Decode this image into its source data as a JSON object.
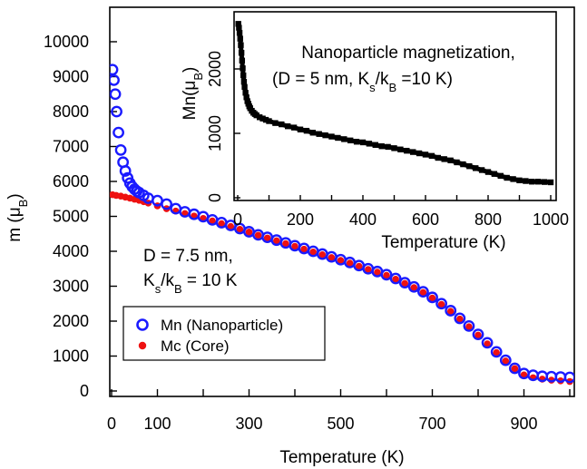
{
  "chart_data": [
    {
      "type": "scatter",
      "xlabel": "Temperature (K)",
      "ylabel": "m (μB)",
      "xlim": [
        0,
        1000
      ],
      "ylim": [
        0,
        10400
      ],
      "xticks": [
        0,
        100,
        300,
        500,
        700,
        900
      ],
      "yticks": [
        0,
        1000,
        2000,
        3000,
        4000,
        5000,
        6000,
        7000,
        8000,
        9000,
        10000
      ],
      "annotation": [
        "D = 7.5 nm,",
        "Ks/kB = 10 K"
      ],
      "legend_position": "bottom-left",
      "series": [
        {
          "name": "Mn (Nanoparticle)",
          "color": "#1a1aff",
          "marker": "open-circle",
          "x": [
            2,
            5,
            8,
            11,
            15,
            20,
            25,
            30,
            35,
            40,
            45,
            50,
            55,
            60,
            70,
            80,
            100,
            120,
            140,
            160,
            180,
            200,
            220,
            240,
            260,
            280,
            300,
            320,
            340,
            360,
            380,
            400,
            420,
            440,
            460,
            480,
            500,
            520,
            540,
            560,
            580,
            600,
            620,
            640,
            660,
            680,
            700,
            720,
            740,
            760,
            780,
            800,
            820,
            840,
            860,
            880,
            900,
            920,
            940,
            960,
            980,
            1000
          ],
          "y": [
            9200,
            8900,
            8500,
            8000,
            7400,
            6900,
            6550,
            6300,
            6100,
            5950,
            5850,
            5780,
            5720,
            5680,
            5600,
            5520,
            5450,
            5350,
            5220,
            5130,
            5060,
            4990,
            4900,
            4820,
            4740,
            4650,
            4560,
            4470,
            4400,
            4320,
            4240,
            4160,
            4080,
            4000,
            3920,
            3840,
            3760,
            3680,
            3590,
            3500,
            3420,
            3330,
            3220,
            3100,
            2980,
            2840,
            2680,
            2500,
            2300,
            2080,
            1860,
            1620,
            1380,
            1120,
            880,
            650,
            500,
            450,
            420,
            410,
            400,
            390
          ]
        },
        {
          "name": "Mc (Core)",
          "color": "#ee1111",
          "marker": "filled-circle",
          "x": [
            2,
            10,
            20,
            30,
            40,
            50,
            60,
            70,
            80,
            100,
            120,
            140,
            160,
            180,
            200,
            220,
            240,
            260,
            280,
            300,
            320,
            340,
            360,
            380,
            400,
            420,
            440,
            460,
            480,
            500,
            520,
            540,
            560,
            580,
            600,
            620,
            640,
            660,
            680,
            700,
            720,
            740,
            760,
            780,
            800,
            820,
            840,
            860,
            880,
            900,
            920,
            940,
            960,
            980,
            1000
          ],
          "y": [
            5620,
            5600,
            5580,
            5550,
            5520,
            5490,
            5460,
            5420,
            5380,
            5300,
            5220,
            5150,
            5080,
            5010,
            4940,
            4870,
            4790,
            4710,
            4630,
            4550,
            4460,
            4380,
            4300,
            4220,
            4140,
            4060,
            3980,
            3900,
            3820,
            3740,
            3660,
            3570,
            3480,
            3400,
            3310,
            3200,
            3080,
            2960,
            2820,
            2660,
            2480,
            2280,
            2060,
            1840,
            1600,
            1350,
            1100,
            860,
            640,
            460,
            380,
            340,
            310,
            290,
            270
          ]
        }
      ]
    },
    {
      "type": "scatter",
      "title_lines": [
        "Nanoparticle magnetization,",
        "(D = 5 nm,  Ks/kB =10 K)"
      ],
      "xlabel": "Temperature (K)",
      "ylabel": "Mn(μB)",
      "xlim": [
        0,
        1000
      ],
      "ylim": [
        0,
        2750
      ],
      "xticks": [
        0,
        200,
        400,
        600,
        800,
        1000
      ],
      "yticks": [
        0,
        1000,
        2000
      ],
      "series": [
        {
          "name": "Mn",
          "color": "#000000",
          "marker": "filled-square",
          "x": [
            2,
            4,
            6,
            8,
            10,
            12,
            14,
            16,
            18,
            20,
            22,
            25,
            28,
            31,
            34,
            37,
            40,
            45,
            50,
            55,
            60,
            70,
            80,
            90,
            100,
            120,
            140,
            160,
            180,
            200,
            220,
            240,
            260,
            280,
            300,
            320,
            340,
            360,
            380,
            400,
            420,
            440,
            460,
            480,
            500,
            520,
            540,
            560,
            580,
            600,
            620,
            640,
            660,
            680,
            700,
            720,
            740,
            760,
            780,
            800,
            820,
            840,
            860,
            880,
            900,
            920,
            940,
            960,
            980,
            1000
          ],
          "y": [
            2700,
            2640,
            2560,
            2470,
            2370,
            2250,
            2130,
            2010,
            1900,
            1800,
            1720,
            1630,
            1560,
            1500,
            1460,
            1420,
            1390,
            1350,
            1320,
            1300,
            1280,
            1250,
            1230,
            1210,
            1190,
            1160,
            1140,
            1110,
            1090,
            1060,
            1040,
            1010,
            990,
            970,
            950,
            930,
            910,
            890,
            870,
            860,
            840,
            820,
            800,
            790,
            770,
            750,
            730,
            710,
            690,
            670,
            650,
            620,
            600,
            580,
            550,
            520,
            490,
            460,
            430,
            400,
            370,
            340,
            310,
            290,
            270,
            260,
            250,
            250,
            245,
            240
          ]
        }
      ]
    }
  ]
}
